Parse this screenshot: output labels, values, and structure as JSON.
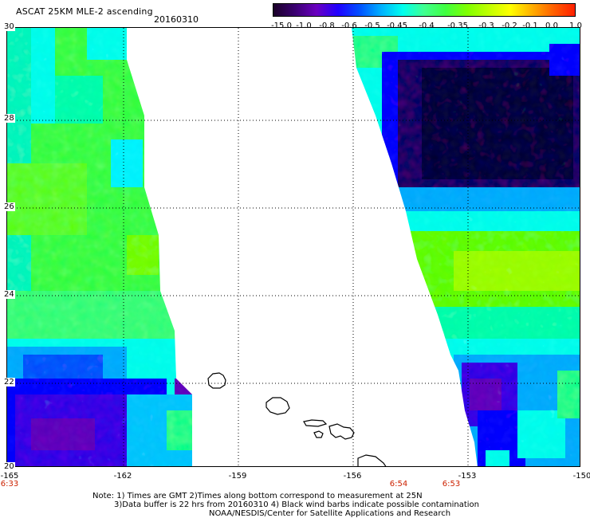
{
  "header": {
    "title": "ASCAT 25KM MLE-2 ascending",
    "date": "20160310"
  },
  "colorbar": {
    "colors": [
      "#1a0028",
      "#3a0070",
      "#6a00c0",
      "#2000ff",
      "#0050ff",
      "#00b0ff",
      "#00ffee",
      "#40ff90",
      "#40ff40",
      "#80ff00",
      "#c0ff00",
      "#ffff00",
      "#ffb000",
      "#ff6000",
      "#ff2000"
    ],
    "labels": [
      "-15.0",
      "-1.0",
      "-0.8",
      "-0.6",
      "-0.5",
      "-0.45",
      "-0.4",
      "-0.35",
      "-0.3",
      "-0.2",
      "-0.1",
      "0.0",
      "1.0"
    ]
  },
  "axes": {
    "lat_labels": [
      "30",
      "28",
      "26",
      "24",
      "22",
      "20"
    ],
    "lon_labels": [
      "-165",
      "-162",
      "-159",
      "-156",
      "-153",
      "-150"
    ],
    "time_labels": [
      {
        "lon": "-165",
        "text": "6:33"
      },
      {
        "lon": "-155",
        "text": "6:54"
      },
      {
        "lon": "-153",
        "text": "6:53"
      }
    ]
  },
  "notes": {
    "line1": "Note: 1) Times are GMT 2)Times along bottom correspond to measurement at 25N",
    "line2": "3)Data buffer is 22 hrs from 20160310 4) Black wind barbs indicate possible contamination",
    "line3": "NOAA/NESDIS/Center for Satellite Applications and Research"
  }
}
